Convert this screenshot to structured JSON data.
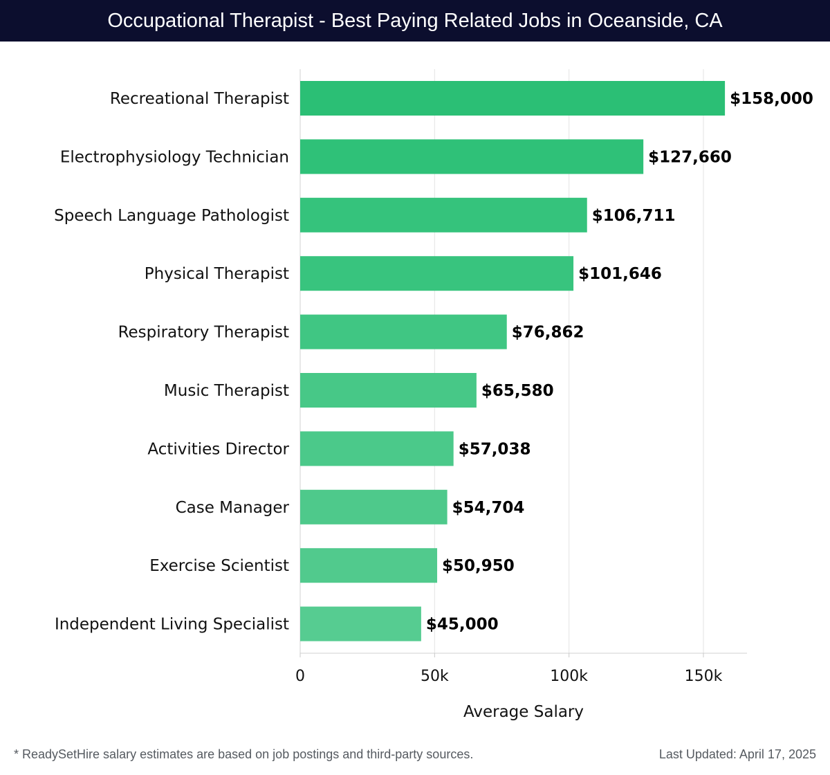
{
  "header": {
    "title": "Occupational Therapist - Best Paying Related Jobs in Oceanside, CA"
  },
  "chart_data": {
    "type": "bar",
    "orientation": "horizontal",
    "categories": [
      "Recreational Therapist",
      "Electrophysiology Technician",
      "Speech Language Pathologist",
      "Physical Therapist",
      "Respiratory Therapist",
      "Music Therapist",
      "Activities Director",
      "Case Manager",
      "Exercise Scientist",
      "Independent Living Specialist"
    ],
    "values": [
      158000,
      127660,
      106711,
      101646,
      76862,
      65580,
      57038,
      54704,
      50950,
      45000
    ],
    "value_labels": [
      "$158,000",
      "$127,660",
      "$106,711",
      "$101,646",
      "$76,862",
      "$65,580",
      "$57,038",
      "$54,704",
      "$50,950",
      "$45,000"
    ],
    "xlabel": "Average Salary",
    "ylabel": "",
    "xlim": [
      0,
      166000
    ],
    "xticks": [
      0,
      50000,
      100000,
      150000
    ],
    "xtick_labels": [
      "0",
      "50k",
      "100k",
      "150k"
    ],
    "grid": "vertical",
    "colors": [
      "#2bbf75",
      "#2fc178",
      "#35c37c",
      "#38c47e",
      "#40c683",
      "#47c887",
      "#4bc98a",
      "#4ec98b",
      "#51ca8d",
      "#56cc91"
    ]
  },
  "footer": {
    "note": "* ReadySetHire salary estimates are based on job postings and third-party sources.",
    "updated": "Last Updated: April 17, 2025"
  }
}
